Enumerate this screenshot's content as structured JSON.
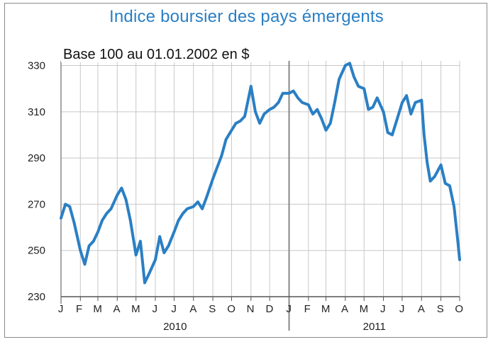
{
  "chart_data": {
    "type": "line",
    "title": "Indice boursier des pays émergents",
    "subtitle": "Base 100 au 01.01.2002 en $",
    "xlabel": "",
    "ylabel": "",
    "ylim": [
      230,
      332
    ],
    "y_ticks": [
      "330",
      "310",
      "290",
      "270",
      "250",
      "230"
    ],
    "month_ticks": [
      "J",
      "F",
      "M",
      "A",
      "M",
      "J",
      "J",
      "A",
      "S",
      "O",
      "N",
      "D",
      "J",
      "F",
      "M",
      "A",
      "M",
      "J",
      "J",
      "A",
      "S",
      "O"
    ],
    "years": [
      "2010",
      "2011"
    ],
    "grid": true,
    "legend": "none",
    "line_color": "#2a7fc4",
    "series": [
      {
        "x": [
          "2010-01-01",
          "2010-01-08",
          "2010-01-15",
          "2010-01-22",
          "2010-02-01",
          "2010-02-08",
          "2010-02-15",
          "2010-02-22",
          "2010-03-01",
          "2010-03-08",
          "2010-03-15",
          "2010-03-22",
          "2010-04-01",
          "2010-04-08",
          "2010-04-15",
          "2010-04-22",
          "2010-05-01",
          "2010-05-08",
          "2010-05-15",
          "2010-05-22",
          "2010-06-01",
          "2010-06-08",
          "2010-06-15",
          "2010-06-22",
          "2010-07-01",
          "2010-07-08",
          "2010-07-15",
          "2010-07-22",
          "2010-08-01",
          "2010-08-08",
          "2010-08-15",
          "2010-08-22",
          "2010-09-01",
          "2010-09-08",
          "2010-09-15",
          "2010-09-22",
          "2010-10-01",
          "2010-10-08",
          "2010-10-15",
          "2010-10-22",
          "2010-11-01",
          "2010-11-08",
          "2010-11-15",
          "2010-11-22",
          "2010-12-01",
          "2010-12-08",
          "2010-12-15",
          "2010-12-22",
          "2011-01-01",
          "2011-01-08",
          "2011-01-15",
          "2011-01-22",
          "2011-02-01",
          "2011-02-08",
          "2011-02-15",
          "2011-02-22",
          "2011-03-01",
          "2011-03-08",
          "2011-03-15",
          "2011-03-22",
          "2011-04-01",
          "2011-04-08",
          "2011-04-15",
          "2011-04-22",
          "2011-05-01",
          "2011-05-08",
          "2011-05-15",
          "2011-05-22",
          "2011-06-01",
          "2011-06-08",
          "2011-06-15",
          "2011-06-22",
          "2011-07-01",
          "2011-07-08",
          "2011-07-15",
          "2011-07-22",
          "2011-08-01",
          "2011-08-05",
          "2011-08-10",
          "2011-08-15",
          "2011-08-22",
          "2011-09-01",
          "2011-09-08",
          "2011-09-15",
          "2011-09-22",
          "2011-09-28",
          "2011-10-01"
        ],
        "values": [
          264,
          270,
          269,
          262,
          250,
          244,
          252,
          254,
          258,
          263,
          266,
          268,
          274,
          277,
          272,
          263,
          248,
          254,
          236,
          240,
          246,
          256,
          249,
          252,
          258,
          263,
          266,
          268,
          269,
          271,
          268,
          273,
          281,
          286,
          291,
          298,
          302,
          305,
          306,
          308,
          321,
          310,
          305,
          309,
          311,
          312,
          314,
          318,
          318,
          319,
          316,
          314,
          313,
          309,
          311,
          307,
          302,
          305,
          314,
          324,
          330,
          331,
          325,
          321,
          320,
          311,
          312,
          316,
          310,
          301,
          300,
          306,
          314,
          317,
          309,
          314,
          315,
          300,
          288,
          280,
          282,
          287,
          279,
          278,
          269,
          254,
          246
        ]
      }
    ]
  }
}
